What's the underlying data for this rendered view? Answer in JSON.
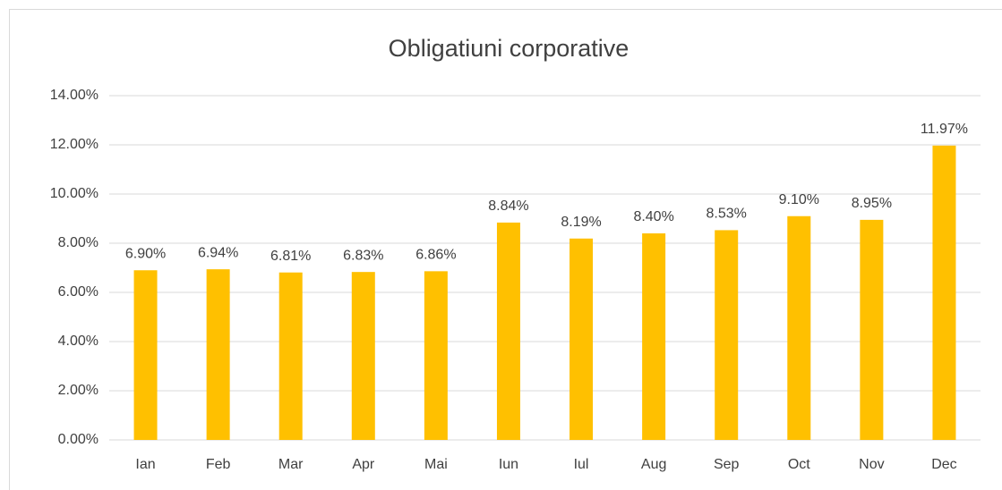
{
  "chart_data": {
    "type": "bar",
    "title": "Obligatiuni corporative",
    "categories": [
      "Ian",
      "Feb",
      "Mar",
      "Apr",
      "Mai",
      "Iun",
      "Iul",
      "Aug",
      "Sep",
      "Oct",
      "Nov",
      "Dec"
    ],
    "values": [
      6.9,
      6.94,
      6.81,
      6.83,
      6.86,
      8.84,
      8.19,
      8.4,
      8.53,
      9.1,
      8.95,
      11.97
    ],
    "value_labels": [
      "6.90%",
      "6.94%",
      "6.81%",
      "6.83%",
      "6.86%",
      "8.84%",
      "8.19%",
      "8.40%",
      "8.53%",
      "9.10%",
      "8.95%",
      "11.97%"
    ],
    "color": "#ffc000",
    "ylim": [
      0,
      14
    ],
    "yticks": [
      {
        "value": 0,
        "label": "0.00%"
      },
      {
        "value": 2,
        "label": "2.00%"
      },
      {
        "value": 4,
        "label": "4.00%"
      },
      {
        "value": 6,
        "label": "6.00%"
      },
      {
        "value": 8,
        "label": "8.00%"
      },
      {
        "value": 10,
        "label": "10.00%"
      },
      {
        "value": 12,
        "label": "12.00%"
      },
      {
        "value": 14,
        "label": "14.00%"
      }
    ],
    "grid": true
  }
}
